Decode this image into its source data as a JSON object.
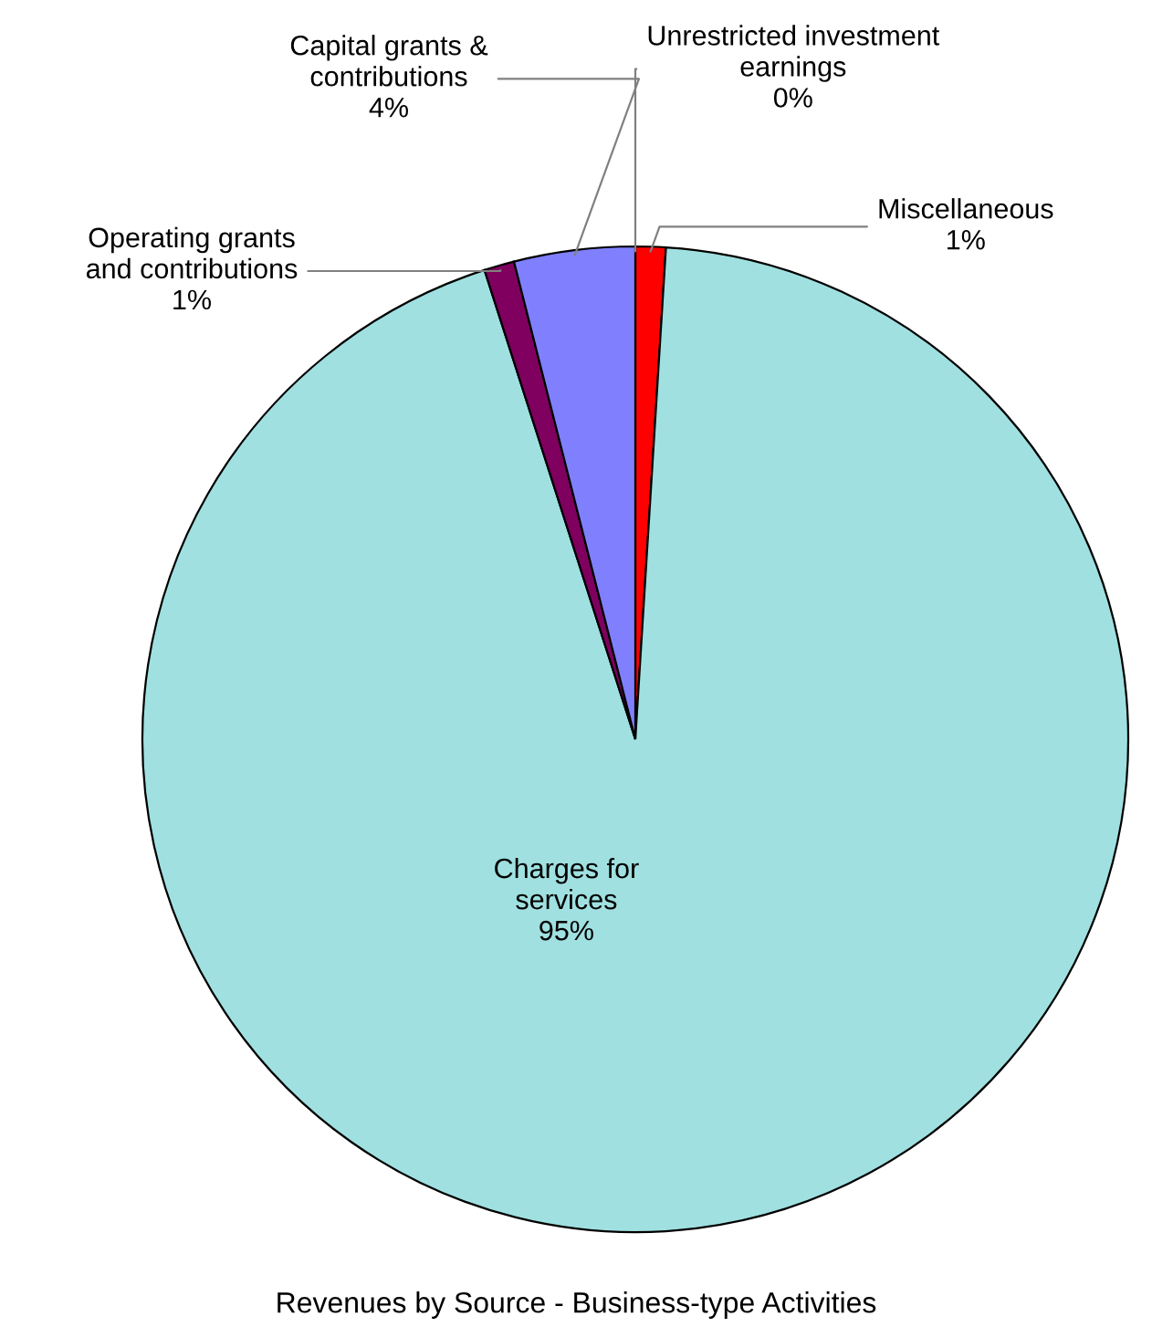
{
  "chart_data": {
    "type": "pie",
    "title": "Revenues by Source - Business-type Activities",
    "categories": [
      "Unrestricted investment\nearnings",
      "Miscellaneous",
      "Charges for\nservices",
      "Operating grants\nand contributions",
      "Capital grants &\ncontributions"
    ],
    "values": [
      0,
      1,
      95,
      1,
      4
    ],
    "value_labels": [
      "0%",
      "1%",
      "95%",
      "1%",
      "4%"
    ],
    "colors": [
      "#000080",
      "#ff0000",
      "#a0e0e0",
      "#800060",
      "#8080ff"
    ],
    "legend": false
  }
}
